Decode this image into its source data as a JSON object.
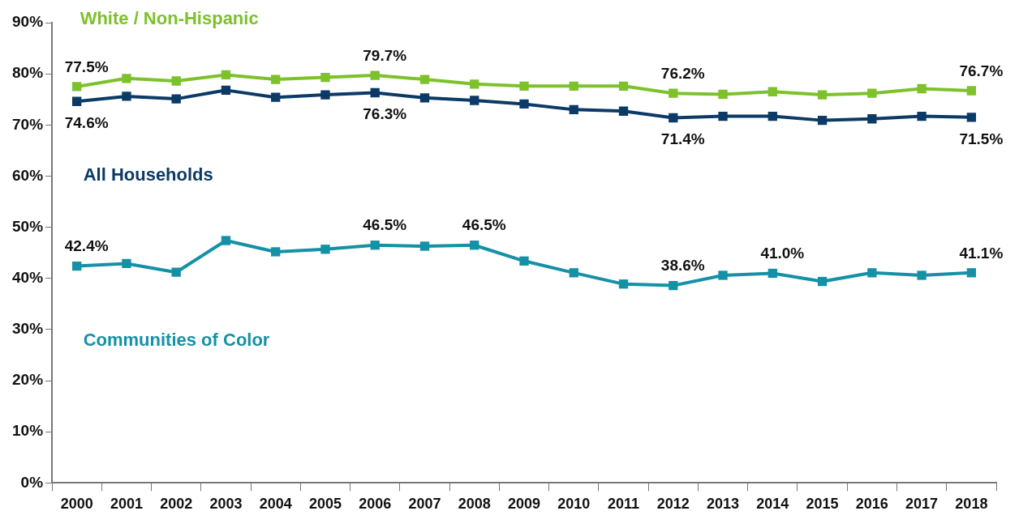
{
  "chart_data": {
    "type": "line",
    "categories": [
      "2000",
      "2001",
      "2002",
      "2003",
      "2004",
      "2005",
      "2006",
      "2007",
      "2008",
      "2009",
      "2010",
      "2011",
      "2012",
      "2013",
      "2014",
      "2015",
      "2016",
      "2017",
      "2018"
    ],
    "series": [
      {
        "name": "White / Non-Hispanic",
        "color": "#7dc12b",
        "values": [
          77.5,
          79.1,
          78.6,
          79.8,
          78.9,
          79.3,
          79.7,
          78.9,
          78.0,
          77.6,
          77.6,
          77.6,
          76.2,
          76.0,
          76.5,
          75.9,
          76.2,
          77.1,
          76.7
        ],
        "value_labels": [
          "77.5%",
          null,
          null,
          null,
          null,
          null,
          "79.7%",
          null,
          null,
          null,
          null,
          null,
          "76.2%",
          null,
          null,
          null,
          null,
          null,
          "76.7%"
        ]
      },
      {
        "name": "All Households",
        "color": "#0b3a66",
        "values": [
          74.6,
          75.6,
          75.1,
          76.8,
          75.4,
          75.9,
          76.3,
          75.3,
          74.8,
          74.1,
          73.0,
          72.7,
          71.4,
          71.7,
          71.7,
          70.9,
          71.2,
          71.7,
          71.5
        ],
        "value_labels": [
          "74.6%",
          null,
          null,
          null,
          null,
          null,
          "76.3%",
          null,
          null,
          null,
          null,
          null,
          "71.4%",
          null,
          null,
          null,
          null,
          null,
          "71.5%"
        ]
      },
      {
        "name": "Communities of Color",
        "color": "#1591a6",
        "values": [
          42.4,
          42.9,
          41.2,
          47.4,
          45.2,
          45.7,
          46.5,
          46.3,
          46.5,
          43.4,
          41.1,
          38.9,
          38.6,
          40.6,
          41.0,
          39.4,
          41.1,
          40.6,
          41.1
        ],
        "value_labels": [
          "42.4%",
          null,
          null,
          null,
          null,
          null,
          "46.5%",
          null,
          "46.5%",
          null,
          null,
          null,
          "38.6%",
          null,
          "41.0%",
          null,
          null,
          null,
          "41.1%"
        ]
      }
    ],
    "ylim": [
      0,
      90
    ],
    "yticks": [
      {
        "value": 0,
        "label": "0%"
      },
      {
        "value": 10,
        "label": "10%"
      },
      {
        "value": 20,
        "label": "20%"
      },
      {
        "value": 30,
        "label": "30%"
      },
      {
        "value": 40,
        "label": "40%"
      },
      {
        "value": 50,
        "label": "50%"
      },
      {
        "value": 60,
        "label": "60%"
      },
      {
        "value": 70,
        "label": "70%"
      },
      {
        "value": 80,
        "label": "80%"
      },
      {
        "value": 90,
        "label": "90%"
      }
    ],
    "grid": false,
    "legend": false,
    "marker": "square",
    "line_style": "solid"
  }
}
